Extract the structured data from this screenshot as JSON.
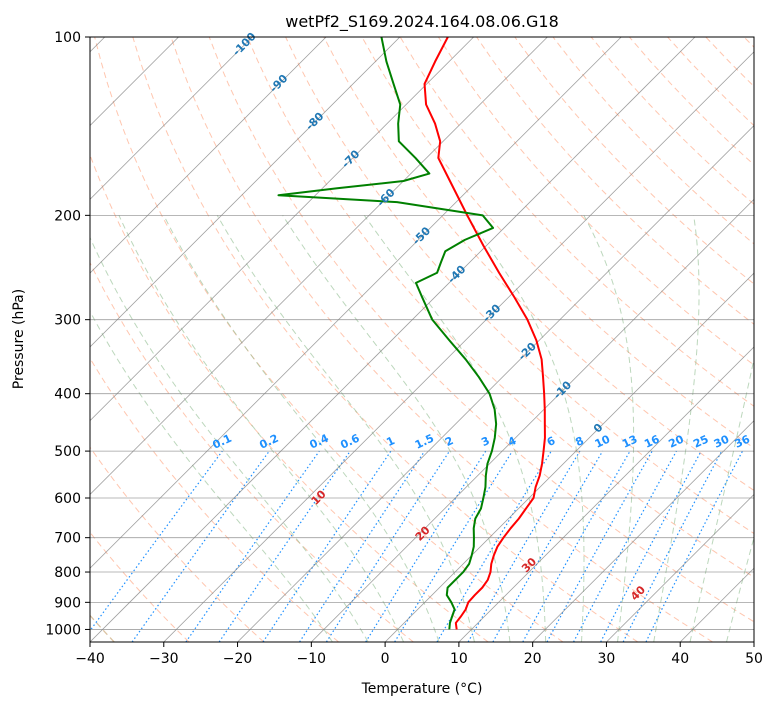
{
  "chart_data": {
    "type": "skew-t",
    "title": "wetPf2_S169.2024.164.08.06.G18",
    "xlabel": "Temperature (°C)",
    "ylabel": "Pressure (hPa)",
    "x_ticks": [
      "−40",
      "−30",
      "−20",
      "−10",
      "0",
      "10",
      "20",
      "30",
      "40",
      "50"
    ],
    "y_ticks": [
      {
        "p": 100,
        "label": "100"
      },
      {
        "p": 200,
        "label": "200"
      },
      {
        "p": 300,
        "label": "300"
      },
      {
        "p": 400,
        "label": "400"
      },
      {
        "p": 500,
        "label": "500"
      },
      {
        "p": 600,
        "label": "600"
      },
      {
        "p": 700,
        "label": "700"
      },
      {
        "p": 800,
        "label": "800"
      },
      {
        "p": 900,
        "label": "900"
      },
      {
        "p": 1000,
        "label": "1000"
      }
    ],
    "xlim": [
      -40,
      50
    ],
    "ylim": [
      1050,
      100
    ],
    "yscale": "log",
    "skew": 45,
    "grid": true,
    "colors": {
      "temperature": "#ff0000",
      "dewpoint": "#008000",
      "isotherm": "#808080",
      "dry_adiabat": "#ffa07a",
      "moist_adiabat": "#8fbc8f",
      "mixing_ratio": "#1e90ff",
      "isotherm_label": "#1f77b4",
      "dry_adiabat_label": "#d62728",
      "dry_adiabat_curve": "#d2b48c"
    },
    "series": [
      {
        "key": "temperature",
        "points": [
          [
            1000,
            8.0
          ],
          [
            975,
            7.0
          ],
          [
            950,
            6.8
          ],
          [
            925,
            6.5
          ],
          [
            900,
            5.9
          ],
          [
            875,
            5.8
          ],
          [
            850,
            5.8
          ],
          [
            825,
            5.5
          ],
          [
            800,
            4.8
          ],
          [
            775,
            3.8
          ],
          [
            750,
            3.0
          ],
          [
            725,
            2.3
          ],
          [
            700,
            1.9
          ],
          [
            675,
            1.6
          ],
          [
            650,
            1.4
          ],
          [
            625,
            1.0
          ],
          [
            600,
            0.6
          ],
          [
            575,
            -0.6
          ],
          [
            550,
            -1.6
          ],
          [
            525,
            -2.9
          ],
          [
            500,
            -4.4
          ],
          [
            475,
            -6.0
          ],
          [
            450,
            -7.9
          ],
          [
            425,
            -9.9
          ],
          [
            400,
            -12.1
          ],
          [
            375,
            -14.5
          ],
          [
            350,
            -17.1
          ],
          [
            325,
            -20.4
          ],
          [
            300,
            -24.4
          ],
          [
            275,
            -29.2
          ],
          [
            250,
            -34.6
          ],
          [
            225,
            -40.4
          ],
          [
            200,
            -46.7
          ],
          [
            175,
            -53.7
          ],
          [
            160,
            -58.4
          ],
          [
            150,
            -60.4
          ],
          [
            140,
            -63.5
          ],
          [
            130,
            -67.3
          ],
          [
            120,
            -70.3
          ],
          [
            110,
            -71.9
          ],
          [
            100,
            -73.5
          ]
        ]
      },
      {
        "key": "dewpoint",
        "points": [
          [
            1000,
            7.0
          ],
          [
            975,
            6.2
          ],
          [
            950,
            5.6
          ],
          [
            925,
            5.0
          ],
          [
            900,
            3.6
          ],
          [
            875,
            2.0
          ],
          [
            850,
            1.1
          ],
          [
            825,
            1.1
          ],
          [
            800,
            1.1
          ],
          [
            775,
            0.8
          ],
          [
            750,
            0.0
          ],
          [
            725,
            -0.9
          ],
          [
            700,
            -2.1
          ],
          [
            675,
            -3.4
          ],
          [
            650,
            -4.5
          ],
          [
            625,
            -5.1
          ],
          [
            600,
            -6.2
          ],
          [
            575,
            -7.4
          ],
          [
            550,
            -8.9
          ],
          [
            525,
            -10.3
          ],
          [
            500,
            -11.4
          ],
          [
            475,
            -12.8
          ],
          [
            450,
            -14.5
          ],
          [
            425,
            -16.7
          ],
          [
            400,
            -19.5
          ],
          [
            375,
            -23.2
          ],
          [
            350,
            -27.4
          ],
          [
            325,
            -32.2
          ],
          [
            300,
            -37.3
          ],
          [
            275,
            -41.7
          ],
          [
            260,
            -44.5
          ],
          [
            250,
            -43.0
          ],
          [
            240,
            -43.9
          ],
          [
            230,
            -44.8
          ],
          [
            220,
            -43.7
          ],
          [
            210,
            -41.5
          ],
          [
            200,
            -44.6
          ],
          [
            190,
            -58.0
          ],
          [
            185,
            -75.0
          ],
          [
            180,
            -68.0
          ],
          [
            175,
            -60.0
          ],
          [
            170,
            -57.5
          ],
          [
            160,
            -61.5
          ],
          [
            150,
            -66.0
          ],
          [
            140,
            -68.5
          ],
          [
            130,
            -70.8
          ],
          [
            120,
            -74.5
          ],
          [
            110,
            -78.5
          ],
          [
            100,
            -82.5
          ]
        ]
      }
    ],
    "isotherm_labels": [
      {
        "t": -100,
        "label": "-100"
      },
      {
        "t": -90,
        "label": "-90"
      },
      {
        "t": -80,
        "label": "-80"
      },
      {
        "t": -70,
        "label": "-70"
      },
      {
        "t": -60,
        "label": "-60"
      },
      {
        "t": -50,
        "label": "-50"
      },
      {
        "t": -40,
        "label": "-40"
      },
      {
        "t": -30,
        "label": "-30"
      },
      {
        "t": -20,
        "label": "-20"
      },
      {
        "t": -10,
        "label": "-10"
      },
      {
        "t": 0,
        "label": "0"
      }
    ],
    "dry_adiabat_labels": [
      {
        "t": 10,
        "label": "10"
      },
      {
        "t": 20,
        "label": "20"
      },
      {
        "t": 30,
        "label": "30"
      },
      {
        "t": 40,
        "label": "40"
      }
    ],
    "mixing_ratio_labels": [
      {
        "w": 0.1,
        "label": "0.1"
      },
      {
        "w": 0.2,
        "label": "0.2"
      },
      {
        "w": 0.4,
        "label": "0.4"
      },
      {
        "w": 0.6,
        "label": "0.6"
      },
      {
        "w": 1,
        "label": "1"
      },
      {
        "w": 1.5,
        "label": "1.5"
      },
      {
        "w": 2,
        "label": "2"
      },
      {
        "w": 3,
        "label": "3"
      },
      {
        "w": 4,
        "label": "4"
      },
      {
        "w": 6,
        "label": "6"
      },
      {
        "w": 8,
        "label": "8"
      },
      {
        "w": 10,
        "label": "10"
      },
      {
        "w": 13,
        "label": "13"
      },
      {
        "w": 16,
        "label": "16"
      },
      {
        "w": 20,
        "label": "20"
      },
      {
        "w": 25,
        "label": "25"
      },
      {
        "w": 30,
        "label": "30"
      },
      {
        "w": 36,
        "label": "36"
      }
    ]
  }
}
